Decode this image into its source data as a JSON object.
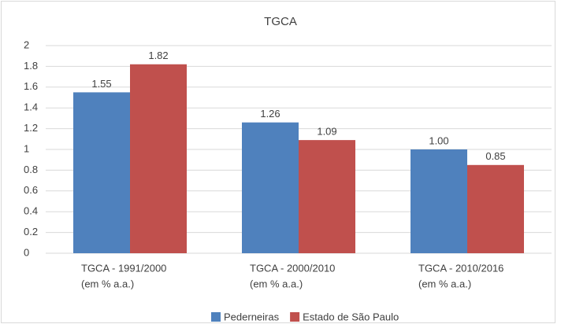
{
  "chart_data": {
    "type": "bar",
    "title": "TGCA",
    "categories": [
      [
        "TGCA - 1991/2000",
        "(em % a.a.)"
      ],
      [
        "TGCA - 2000/2010",
        "(em % a.a.)"
      ],
      [
        "TGCA - 2010/2016",
        "(em % a.a.)"
      ]
    ],
    "series": [
      {
        "name": "Pederneiras",
        "color": "#4f81bd",
        "values": [
          1.55,
          1.26,
          1.0
        ],
        "value_labels": [
          "1.55",
          "1.26",
          "1.00"
        ]
      },
      {
        "name": "Estado de São Paulo",
        "color": "#c0504d",
        "values": [
          1.82,
          1.09,
          0.85
        ],
        "value_labels": [
          "1.82",
          "1.09",
          "0.85"
        ]
      }
    ],
    "ylim": [
      0,
      2
    ],
    "yticks": [
      0,
      0.2,
      0.4,
      0.6,
      0.8,
      1,
      1.2,
      1.4,
      1.6,
      1.8,
      2
    ],
    "grid": true,
    "legend": "bottom"
  }
}
